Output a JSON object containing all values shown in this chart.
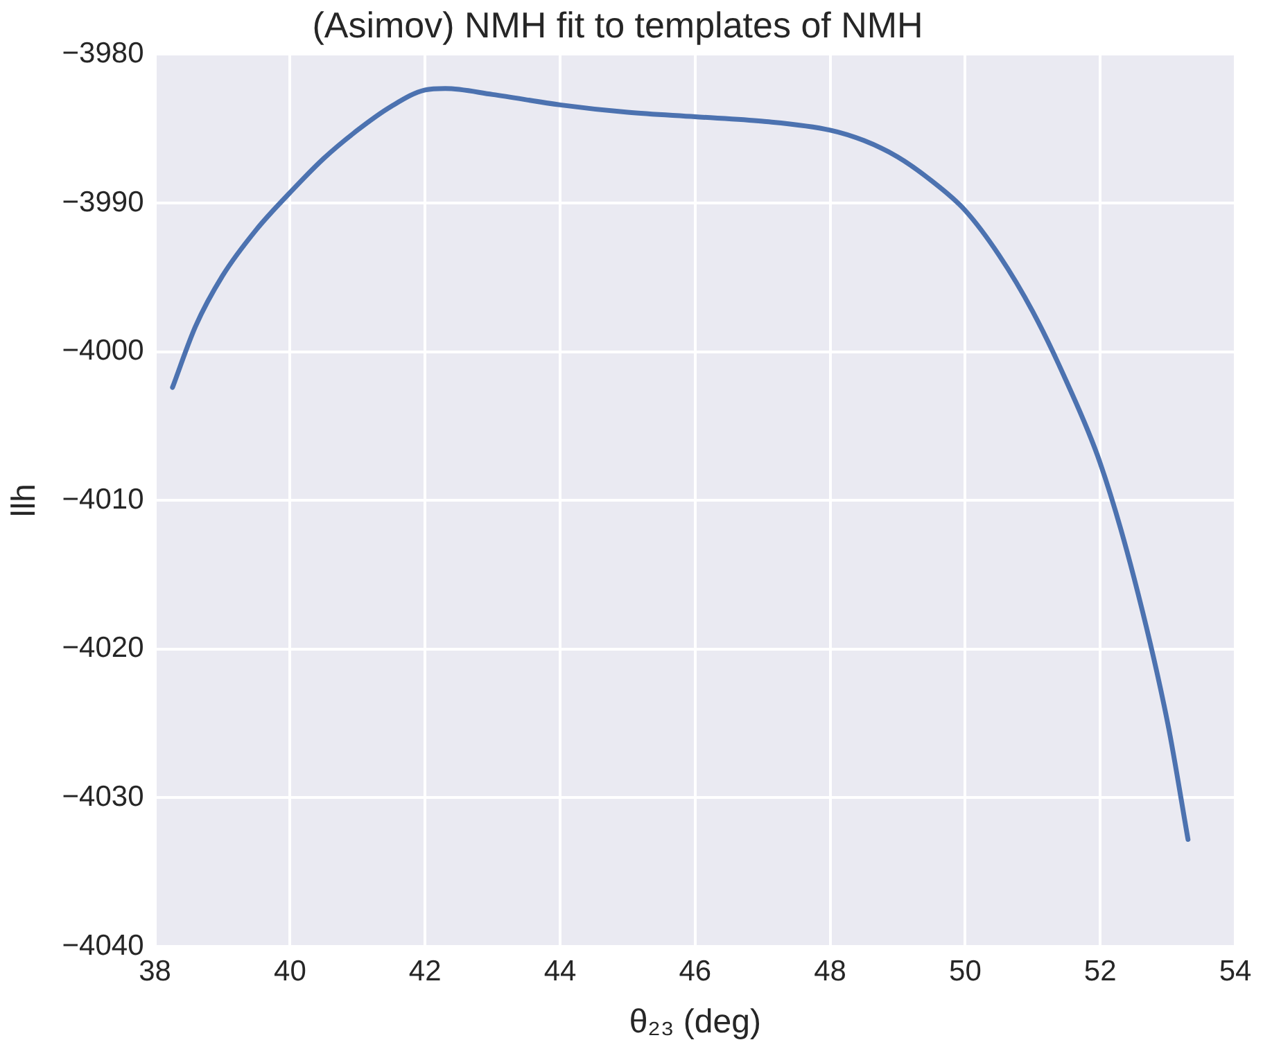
{
  "chart_data": {
    "type": "line",
    "title": "(Asimov) NMH fit to templates of NMH",
    "xlabel": "θ₂₃ (deg)",
    "ylabel": "llh",
    "x": [
      38.26,
      38.6,
      39,
      39.5,
      40,
      40.5,
      41,
      41.5,
      42,
      42.3,
      43,
      44,
      45,
      46,
      47,
      48,
      48.5,
      49,
      49.5,
      50,
      50.5,
      51,
      51.5,
      52,
      52.5,
      53,
      53.3
    ],
    "series": [
      {
        "color": "#4c72b0",
        "values": [
          -4002.4,
          -3998.3,
          -3994.9,
          -3991.8,
          -3989.3,
          -3987,
          -3985.1,
          -3983.5,
          -3982.4,
          -3982.3,
          -3982.7,
          -3983.4,
          -3983.9,
          -3984.2,
          -3984.5,
          -3985.1,
          -3985.8,
          -3986.9,
          -3988.5,
          -3990.5,
          -3993.5,
          -3997.3,
          -4002,
          -4007.5,
          -4015.2,
          -4025,
          -4032.8
        ]
      }
    ],
    "xlim": [
      38,
      54
    ],
    "xticks": [
      38,
      40,
      42,
      44,
      46,
      48,
      50,
      52,
      54
    ],
    "ylim": [
      -4040,
      -3980
    ],
    "yticks": [
      -4040,
      -4030,
      -4020,
      -4010,
      -4000,
      -3990,
      -3980
    ],
    "grid": true,
    "marker": "none",
    "line_style": "solid"
  }
}
